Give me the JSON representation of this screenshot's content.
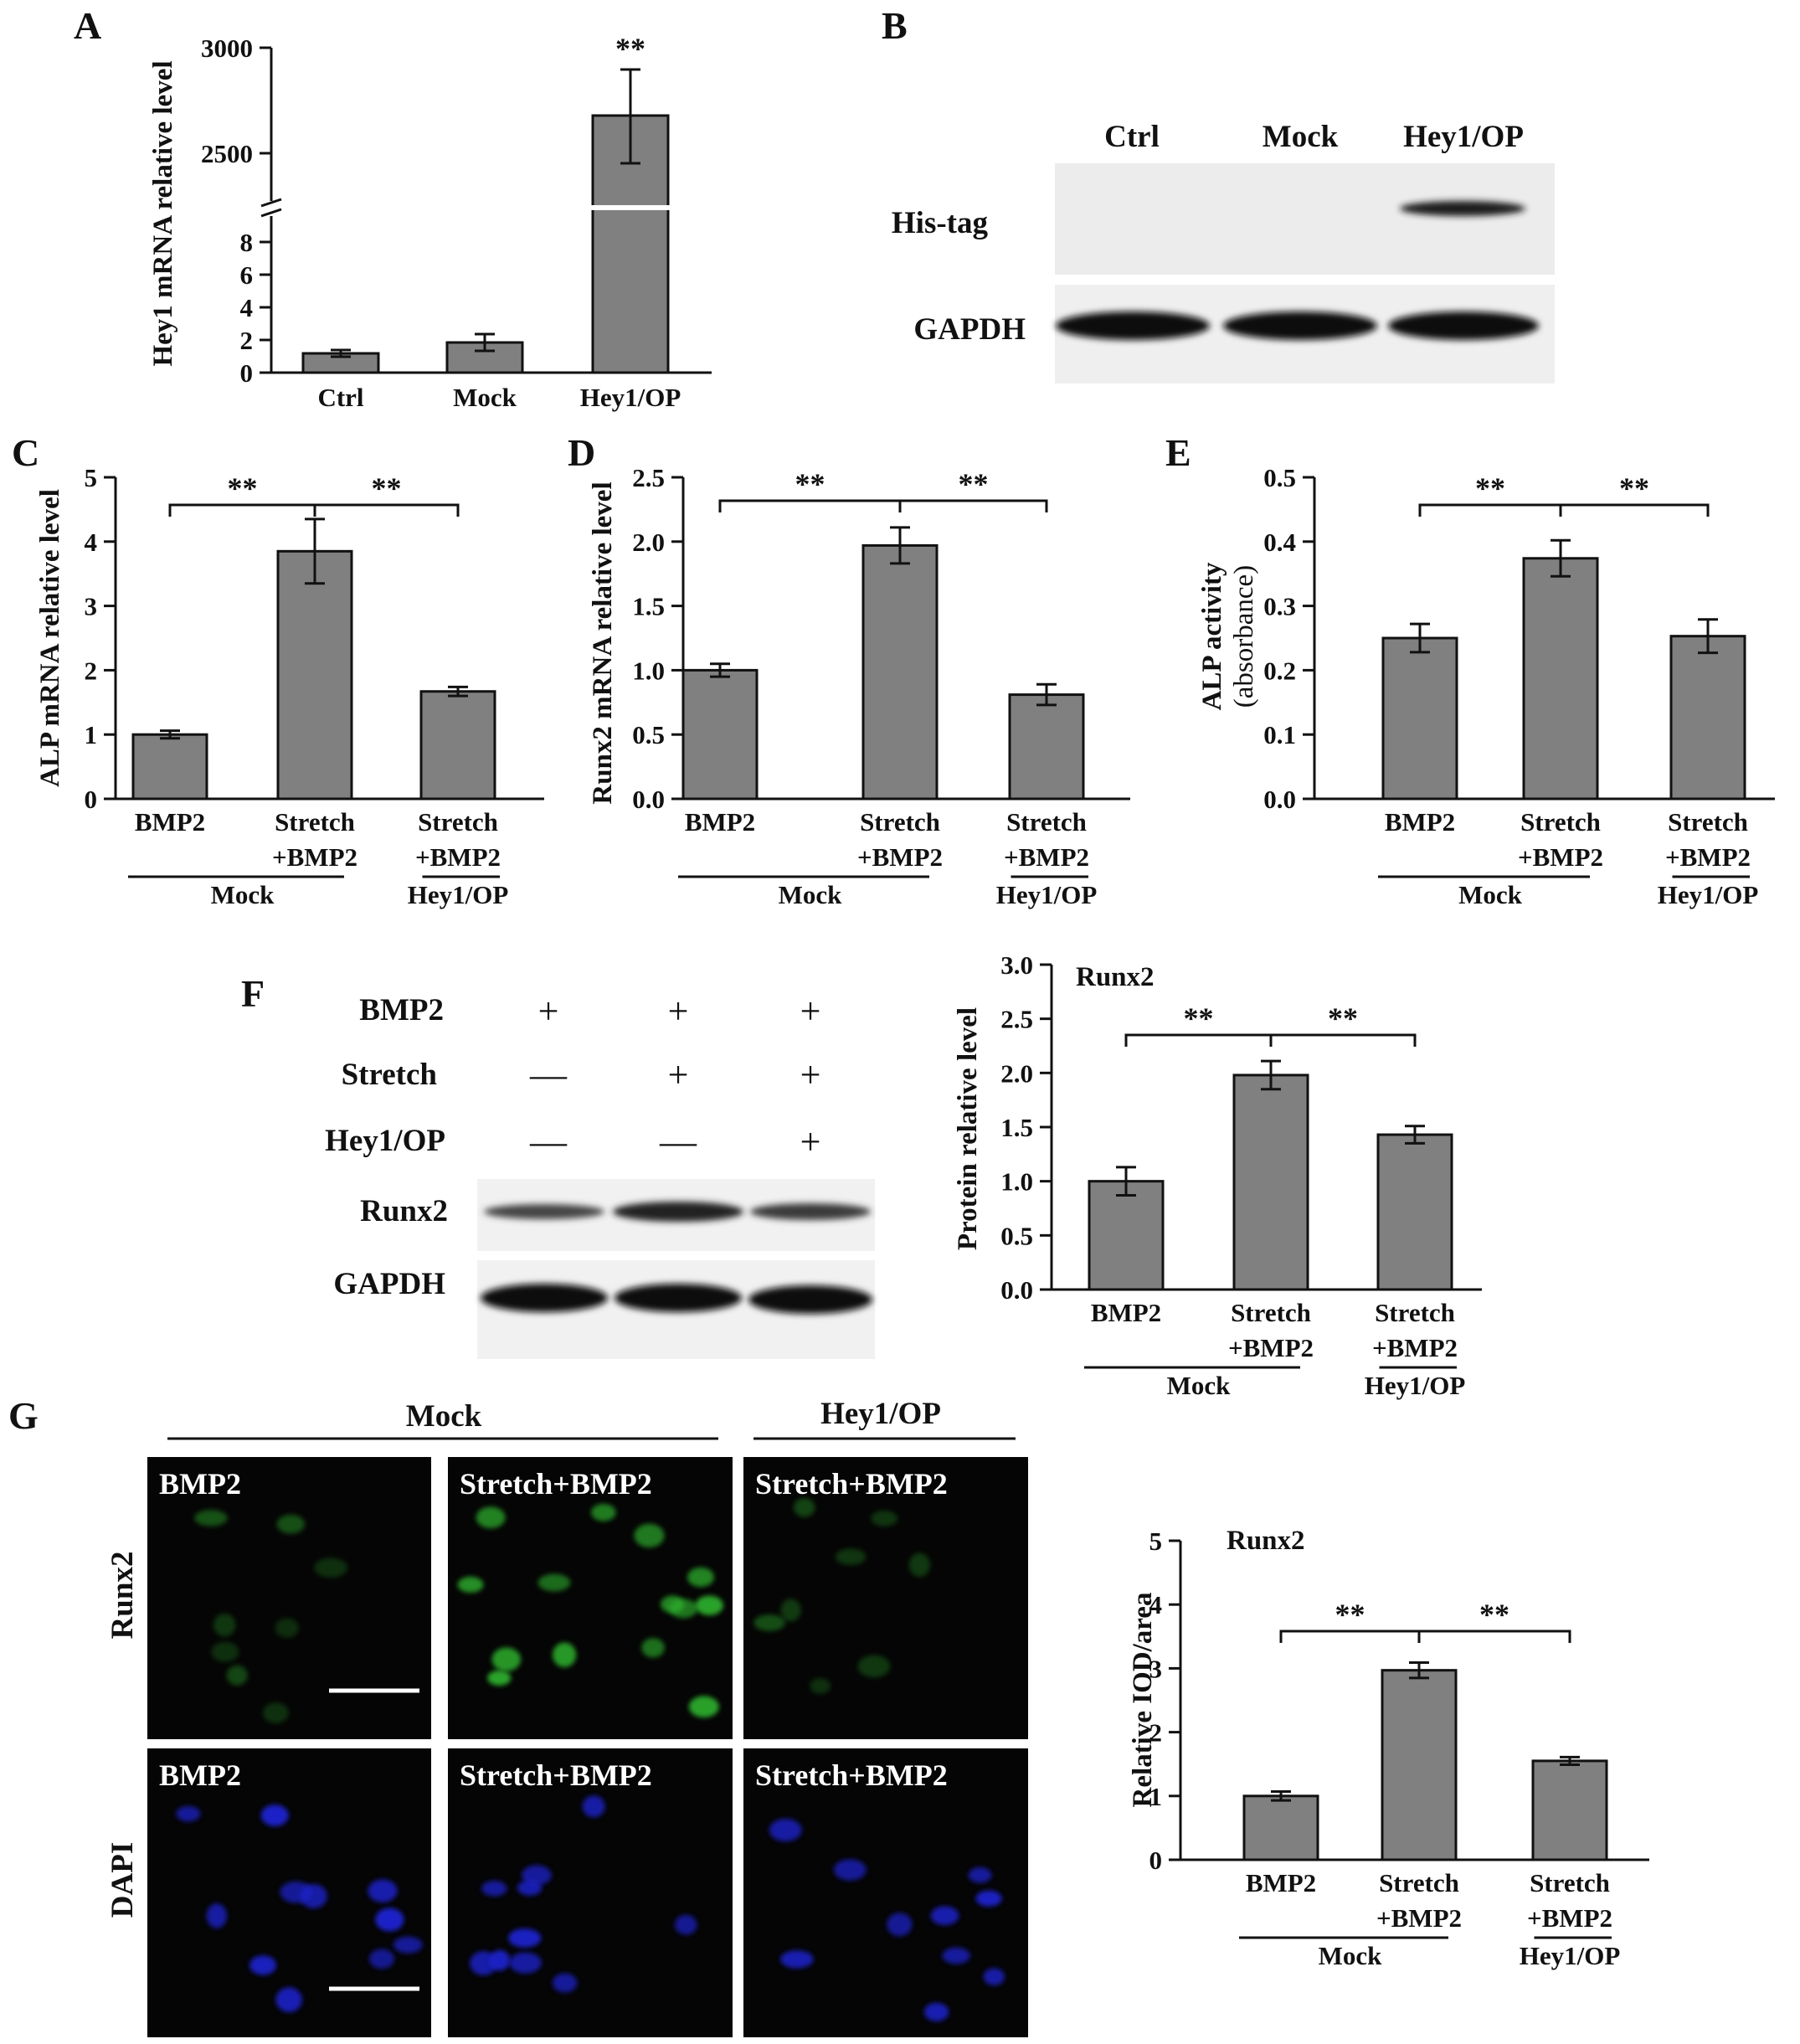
{
  "colors": {
    "bar": "#808080",
    "axis": "#111111",
    "micro_bg": "#050505",
    "runx2_stain": "#2fb42f",
    "dapi_stain": "#1c24c8"
  },
  "panels": {
    "A": {
      "letter": "A",
      "ylabel": "Hey1 mRNA relative level",
      "sig": "**"
    },
    "B": {
      "letter": "B",
      "lanes": [
        "Ctrl",
        "Mock",
        "Hey1/OP"
      ],
      "rows": [
        "His-tag",
        "GAPDH"
      ]
    },
    "C": {
      "letter": "C",
      "ylabel": "ALP mRNA relative level",
      "sig": [
        "**",
        "**"
      ]
    },
    "D": {
      "letter": "D",
      "ylabel": "Runx2 mRNA relative level",
      "sig": [
        "**",
        "**"
      ]
    },
    "E": {
      "letter": "E",
      "ylabel_line1": "ALP activity",
      "ylabel_line2": "(absorbance)",
      "sig": [
        "**",
        "**"
      ]
    },
    "F": {
      "letter": "F",
      "conditions": [
        "BMP2",
        "Stretch",
        "Hey1/OP"
      ],
      "bands": [
        "Runx2",
        "GAPDH"
      ],
      "plus": "+",
      "minus": "—",
      "chart_title": "Runx2",
      "ylabel": "Protein relative level",
      "sig": [
        "**",
        "**"
      ]
    },
    "G": {
      "letter": "G",
      "groups": [
        "Mock",
        "Hey1/OP"
      ],
      "row_labels": [
        "Runx2",
        "DAPI"
      ],
      "image_labels": [
        "BMP2",
        "Stretch+BMP2",
        "Stretch+BMP2"
      ],
      "chart_title": "Runx2",
      "ylabel": "Relative IOD/area",
      "sig": [
        "**",
        "**"
      ]
    }
  },
  "x_categories": [
    "BMP2",
    "Stretch",
    "+BMP2",
    "Mock",
    "Hey1/OP"
  ],
  "chart_data": [
    {
      "panel": "A",
      "type": "bar",
      "categories": [
        "Ctrl",
        "Mock",
        "Hey1/OP"
      ],
      "values": [
        1.0,
        1.6,
        2680
      ],
      "errors": [
        0.15,
        0.45,
        220
      ],
      "ylabel": "Hey1 mRNA relative level",
      "axis_break": true,
      "yticks_lower": [
        0,
        2,
        4,
        6,
        8
      ],
      "yticks_upper": [
        2500,
        3000
      ],
      "significance": [
        {
          "bar": 2,
          "label": "**"
        }
      ]
    },
    {
      "panel": "C",
      "type": "bar",
      "categories": [
        "BMP2",
        "Stretch +BMP2",
        "Stretch +BMP2"
      ],
      "groups": [
        {
          "name": "Mock",
          "bars": [
            0,
            1
          ]
        },
        {
          "name": "Hey1/OP",
          "bars": [
            2
          ]
        }
      ],
      "values": [
        1.0,
        3.85,
        1.67
      ],
      "errors": [
        0.06,
        0.5,
        0.07
      ],
      "ylim": [
        0,
        5
      ],
      "yticks": [
        0,
        1,
        2,
        3,
        4,
        5
      ],
      "ylabel": "ALP mRNA relative level",
      "significance": [
        {
          "from": 0,
          "to": 1,
          "label": "**"
        },
        {
          "from": 1,
          "to": 2,
          "label": "**"
        }
      ]
    },
    {
      "panel": "D",
      "type": "bar",
      "categories": [
        "BMP2",
        "Stretch +BMP2",
        "Stretch +BMP2"
      ],
      "groups": [
        {
          "name": "Mock",
          "bars": [
            0,
            1
          ]
        },
        {
          "name": "Hey1/OP",
          "bars": [
            2
          ]
        }
      ],
      "values": [
        1.0,
        1.97,
        0.81
      ],
      "errors": [
        0.05,
        0.14,
        0.08
      ],
      "ylim": [
        0,
        2.5
      ],
      "yticks": [
        "0.0",
        "0.5",
        "1.0",
        "1.5",
        "2.0",
        "2.5"
      ],
      "ylabel": "Runx2 mRNA relative level",
      "significance": [
        {
          "from": 0,
          "to": 1,
          "label": "**"
        },
        {
          "from": 1,
          "to": 2,
          "label": "**"
        }
      ]
    },
    {
      "panel": "E",
      "type": "bar",
      "categories": [
        "BMP2",
        "Stretch +BMP2",
        "Stretch +BMP2"
      ],
      "groups": [
        {
          "name": "Mock",
          "bars": [
            0,
            1
          ]
        },
        {
          "name": "Hey1/OP",
          "bars": [
            2
          ]
        }
      ],
      "values": [
        0.25,
        0.374,
        0.253
      ],
      "errors": [
        0.022,
        0.028,
        0.026
      ],
      "ylim": [
        0,
        0.5
      ],
      "yticks": [
        "0.0",
        "0.1",
        "0.2",
        "0.3",
        "0.4",
        "0.5"
      ],
      "ylabel": "ALP activity (absorbance)",
      "significance": [
        {
          "from": 0,
          "to": 1,
          "label": "**"
        },
        {
          "from": 1,
          "to": 2,
          "label": "**"
        }
      ]
    },
    {
      "panel": "F",
      "type": "bar",
      "title": "Runx2",
      "categories": [
        "BMP2",
        "Stretch +BMP2",
        "Stretch +BMP2"
      ],
      "groups": [
        {
          "name": "Mock",
          "bars": [
            0,
            1
          ]
        },
        {
          "name": "Hey1/OP",
          "bars": [
            2
          ]
        }
      ],
      "values": [
        1.0,
        1.98,
        1.43
      ],
      "errors": [
        0.13,
        0.13,
        0.08
      ],
      "ylim": [
        0,
        3.0
      ],
      "yticks": [
        "0.0",
        "0.5",
        "1.0",
        "1.5",
        "2.0",
        "2.5",
        "3.0"
      ],
      "ylabel": "Protein relative level",
      "significance": [
        {
          "from": 0,
          "to": 1,
          "label": "**"
        },
        {
          "from": 1,
          "to": 2,
          "label": "**"
        }
      ]
    },
    {
      "panel": "G",
      "type": "bar",
      "title": "Runx2",
      "categories": [
        "BMP2",
        "Stretch +BMP2",
        "Stretch +BMP2"
      ],
      "groups": [
        {
          "name": "Mock",
          "bars": [
            0,
            1
          ]
        },
        {
          "name": "Hey1/OP",
          "bars": [
            2
          ]
        }
      ],
      "values": [
        1.0,
        2.97,
        1.55
      ],
      "errors": [
        0.07,
        0.12,
        0.06
      ],
      "ylim": [
        0,
        5
      ],
      "yticks": [
        0,
        1,
        2,
        3,
        4,
        5
      ],
      "ylabel": "Relative IOD/area",
      "significance": [
        {
          "from": 0,
          "to": 1,
          "label": "**"
        },
        {
          "from": 1,
          "to": 2,
          "label": "**"
        }
      ]
    }
  ]
}
